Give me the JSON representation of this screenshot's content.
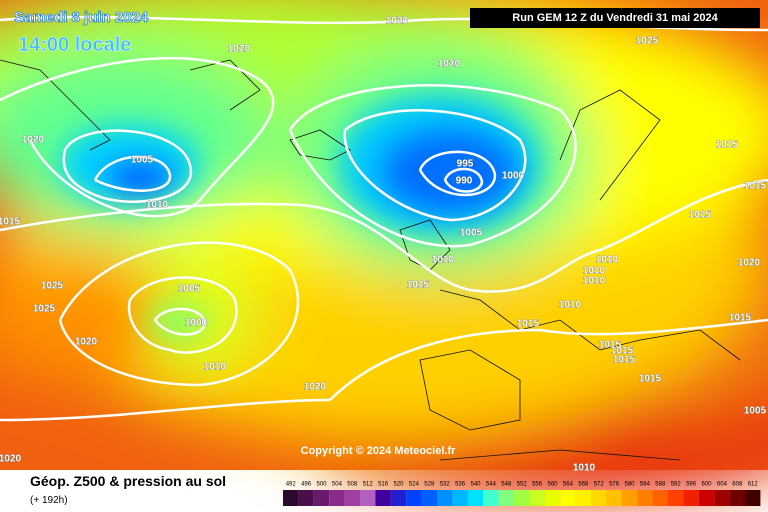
{
  "header": {
    "date": "Samedi 8 juin 2024",
    "time": "14:00 locale",
    "run": "Run GEM 12 Z du Vendredi 31 mai 2024"
  },
  "isobar_labels": [
    "1020",
    "1020",
    "1020",
    "1025",
    "1020",
    "1005",
    "1010",
    "995",
    "990",
    "1000",
    "1005",
    "1010",
    "1015",
    "1015",
    "1025",
    "1025",
    "1005",
    "1000",
    "1020",
    "1010",
    "1020",
    "1015",
    "1015",
    "1015",
    "1020",
    "1010",
    "1010",
    "1010",
    "1010",
    "1015",
    "1015",
    "1015",
    "1015",
    "1015",
    "1015",
    "1005",
    "1020",
    "1010"
  ],
  "copyright": "Copyright © 2024 Meteociel.fr",
  "footer": {
    "title": "Géop. Z500 & pression au sol",
    "lead": "(+ 192h)"
  },
  "scale": {
    "ticks": [
      492,
      496,
      500,
      504,
      508,
      512,
      516,
      520,
      524,
      528,
      532,
      536,
      540,
      544,
      548,
      552,
      556,
      560,
      564,
      568,
      572,
      576,
      580,
      584,
      588,
      592,
      596,
      600,
      604,
      608,
      612
    ],
    "colors": [
      "#2d0a2d",
      "#4a0f4a",
      "#6a1a6a",
      "#8a2a8a",
      "#a040a0",
      "#b060c0",
      "#4000a0",
      "#2020d0",
      "#0040ff",
      "#0060ff",
      "#0090ff",
      "#00b8ff",
      "#00e0ff",
      "#40ffd0",
      "#80ff80",
      "#a0ff40",
      "#c8ff20",
      "#e8ff00",
      "#ffff00",
      "#fff000",
      "#ffd800",
      "#ffc000",
      "#ffa000",
      "#ff8000",
      "#ff6000",
      "#ff4000",
      "#f02000",
      "#d00000",
      "#a00000",
      "#700000",
      "#400000"
    ]
  }
}
